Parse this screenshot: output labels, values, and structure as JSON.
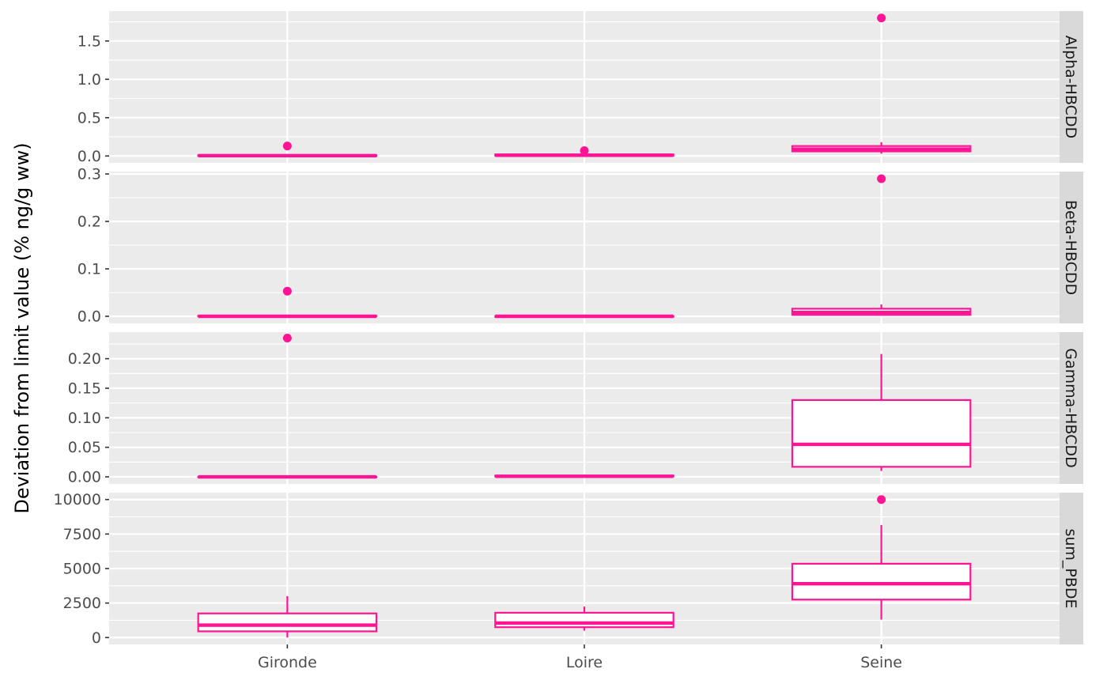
{
  "chart_data": {
    "type": "boxplot",
    "facet": "rows",
    "scales": "free_y",
    "ylabel": "Deviation from limit value (% ng/g ww)",
    "xlabel": "",
    "categories": [
      "Gironde",
      "Loire",
      "Seine"
    ],
    "color": "#ff1493",
    "panel_background": "#ebebeb",
    "strip_background": "#d9d9d9",
    "grid": true,
    "panels": [
      {
        "name": "Alpha-HBCDD",
        "ylim": [
          -0.09,
          1.89
        ],
        "yticks": [
          0.0,
          0.5,
          1.0,
          1.5
        ],
        "tick_labels": [
          "0.0",
          "0.5",
          "1.0",
          "1.5"
        ],
        "boxes": [
          {
            "category": "Gironde",
            "min": 0.0,
            "q1": 0.0,
            "median": 0.005,
            "q3": 0.01,
            "max": 0.02,
            "outliers": [
              0.13
            ]
          },
          {
            "category": "Loire",
            "min": 0.0,
            "q1": 0.005,
            "median": 0.01,
            "q3": 0.02,
            "max": 0.03,
            "outliers": [
              0.07
            ]
          },
          {
            "category": "Seine",
            "min": 0.03,
            "q1": 0.06,
            "median": 0.09,
            "q3": 0.13,
            "max": 0.18,
            "outliers": [
              1.8
            ]
          }
        ]
      },
      {
        "name": "Beta-HBCDD",
        "ylim": [
          -0.015,
          0.305
        ],
        "yticks": [
          0.0,
          0.1,
          0.2,
          0.3
        ],
        "tick_labels": [
          "0.0",
          "0.1",
          "0.2",
          "0.3"
        ],
        "boxes": [
          {
            "category": "Gironde",
            "min": 0.0,
            "q1": 0.0,
            "median": 0.0,
            "q3": 0.001,
            "max": 0.002,
            "outliers": [
              0.053
            ]
          },
          {
            "category": "Loire",
            "min": 0.0,
            "q1": 0.0,
            "median": 0.0,
            "q3": 0.0,
            "max": 0.0,
            "outliers": []
          },
          {
            "category": "Seine",
            "min": 0.002,
            "q1": 0.003,
            "median": 0.008,
            "q3": 0.016,
            "max": 0.025,
            "outliers": [
              0.29
            ]
          }
        ]
      },
      {
        "name": "Gamma-HBCDD",
        "ylim": [
          -0.012,
          0.245
        ],
        "yticks": [
          0.0,
          0.05,
          0.1,
          0.15,
          0.2
        ],
        "tick_labels": [
          "0.00",
          "0.05",
          "0.10",
          "0.15",
          "0.20"
        ],
        "boxes": [
          {
            "category": "Gironde",
            "min": 0.0,
            "q1": 0.0,
            "median": 0.0,
            "q3": 0.0,
            "max": 0.0,
            "outliers": [
              0.235
            ]
          },
          {
            "category": "Loire",
            "min": 0.0,
            "q1": 0.001,
            "median": 0.001,
            "q3": 0.002,
            "max": 0.002,
            "outliers": []
          },
          {
            "category": "Seine",
            "min": 0.01,
            "q1": 0.017,
            "median": 0.055,
            "q3": 0.13,
            "max": 0.208,
            "outliers": []
          }
        ]
      },
      {
        "name": "sum_PBDE",
        "ylim": [
          -500,
          10500
        ],
        "yticks": [
          0,
          2500,
          5000,
          7500,
          10000
        ],
        "tick_labels": [
          "0",
          "2500",
          "5000",
          "7500",
          "10000"
        ],
        "boxes": [
          {
            "category": "Gironde",
            "min": 0,
            "q1": 450,
            "median": 900,
            "q3": 1750,
            "max": 3000,
            "outliers": []
          },
          {
            "category": "Loire",
            "min": 500,
            "q1": 750,
            "median": 1050,
            "q3": 1800,
            "max": 2250,
            "outliers": []
          },
          {
            "category": "Seine",
            "min": 1300,
            "q1": 2750,
            "median": 3900,
            "q3": 5350,
            "max": 8150,
            "outliers": [
              10000
            ]
          }
        ]
      }
    ]
  }
}
